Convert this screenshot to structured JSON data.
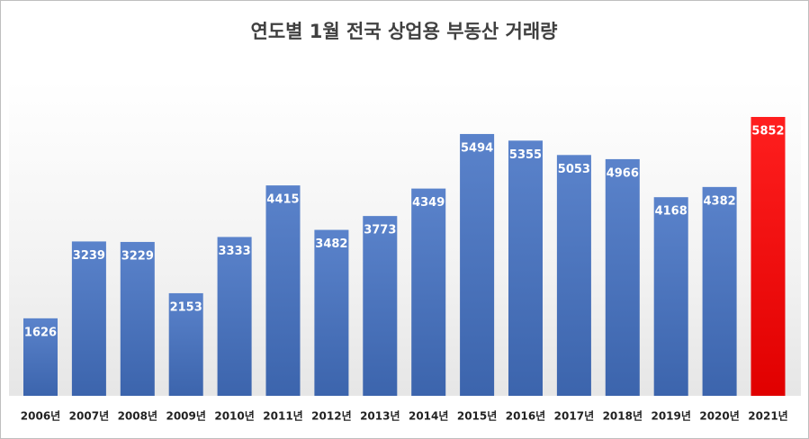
{
  "chart_data": {
    "type": "bar",
    "title": "연도별 1월 전국 상업용 부동산 거래량",
    "categories": [
      "2006년",
      "2007년",
      "2008년",
      "2009년",
      "2010년",
      "2011년",
      "2012년",
      "2013년",
      "2014년",
      "2015년",
      "2016년",
      "2017년",
      "2018년",
      "2019년",
      "2020년",
      "2021년"
    ],
    "values": [
      1626,
      3239,
      3229,
      2153,
      3333,
      4415,
      3482,
      3773,
      4349,
      5494,
      5355,
      5053,
      4966,
      4168,
      4382,
      5852
    ],
    "colors": [
      "#4472c4",
      "#4472c4",
      "#4472c4",
      "#4472c4",
      "#4472c4",
      "#4472c4",
      "#4472c4",
      "#4472c4",
      "#4472c4",
      "#4472c4",
      "#4472c4",
      "#4472c4",
      "#4472c4",
      "#4472c4",
      "#4472c4",
      "#ff0000"
    ],
    "grid": false
  }
}
